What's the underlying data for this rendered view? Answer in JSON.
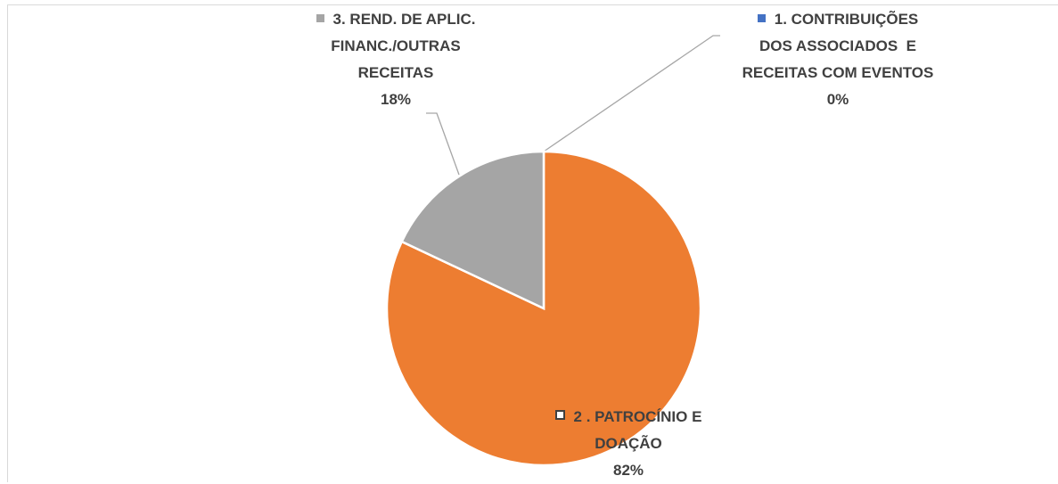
{
  "chart_data": {
    "type": "pie",
    "categories": [
      "1. CONTRIBUIÇÕES DOS ASSOCIADOS  E RECEITAS COM EVENTOS",
      "2 . PATROCÍNIO E DOAÇÃO",
      "3. REND. DE APLIC. FINANC./OUTRAS RECEITAS"
    ],
    "values": [
      0,
      82,
      18
    ],
    "value_labels": [
      "0%",
      "82%",
      "18%"
    ],
    "colors": [
      "#4472c4",
      "#ed7d31",
      "#a5a5a5"
    ]
  }
}
